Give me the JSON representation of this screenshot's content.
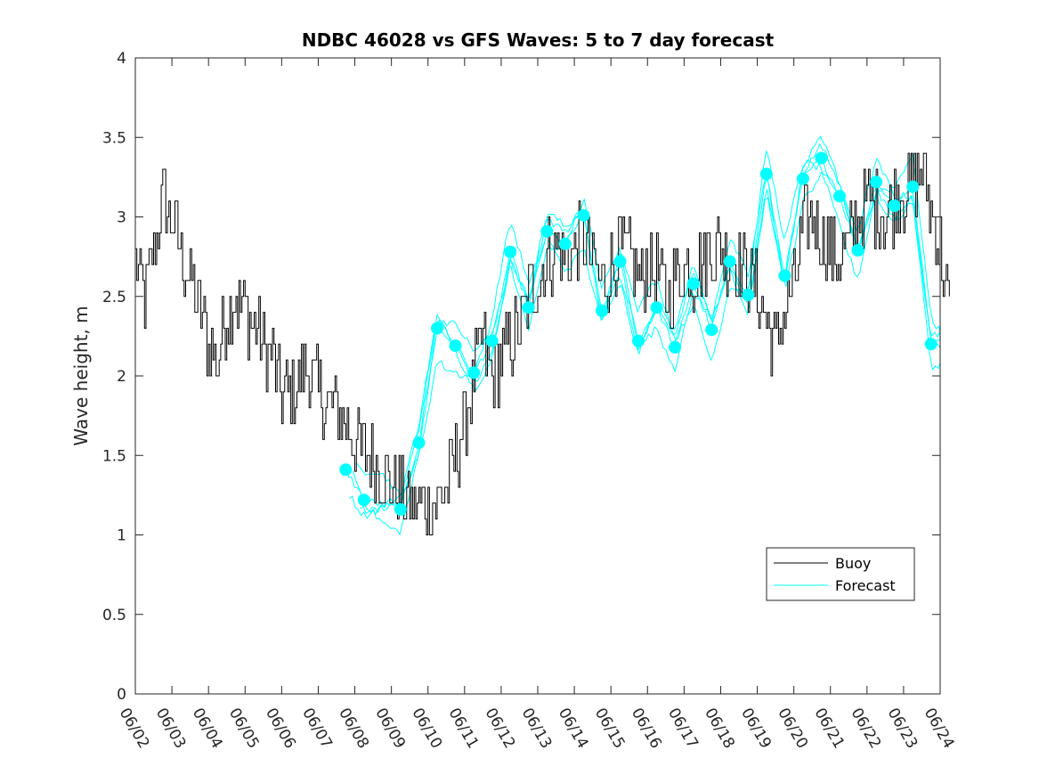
{
  "chart_data": {
    "type": "line",
    "title": "NDBC 46028 vs GFS Waves: 5 to 7 day forecast",
    "xlabel": "",
    "ylabel": "Wave height, m",
    "xlim": [
      0,
      22
    ],
    "ylim": [
      0,
      4
    ],
    "grid": false,
    "legend_placement": "bottom-right",
    "x_ticks": [
      "06/02",
      "06/03",
      "06/04",
      "06/05",
      "06/06",
      "06/07",
      "06/08",
      "06/09",
      "06/10",
      "06/11",
      "06/12",
      "06/13",
      "06/14",
      "06/15",
      "06/16",
      "06/17",
      "06/18",
      "06/19",
      "06/20",
      "06/21",
      "06/22",
      "06/23",
      "06/24"
    ],
    "y_ticks": [
      "0",
      "0.5",
      "1",
      "1.5",
      "2",
      "2.5",
      "3",
      "3.5",
      "4"
    ],
    "colors": {
      "buoy": "#000000",
      "forecast": "#00FFFF",
      "axes": "#262626"
    },
    "series": [
      {
        "name": "Buoy",
        "x_unit": "days since 06/02",
        "points": [
          [
            0.0,
            2.7
          ],
          [
            0.25,
            2.5
          ],
          [
            0.5,
            2.8
          ],
          [
            0.75,
            3.1
          ],
          [
            1.0,
            3.0
          ],
          [
            1.2,
            2.8
          ],
          [
            1.5,
            2.6
          ],
          [
            1.75,
            2.4
          ],
          [
            2.0,
            2.2
          ],
          [
            2.25,
            2.1
          ],
          [
            2.5,
            2.4
          ],
          [
            2.75,
            2.5
          ],
          [
            3.0,
            2.4
          ],
          [
            3.25,
            2.3
          ],
          [
            3.5,
            2.2
          ],
          [
            3.75,
            2.1
          ],
          [
            4.0,
            1.9
          ],
          [
            4.25,
            1.9
          ],
          [
            4.5,
            2.0
          ],
          [
            4.75,
            2.0
          ],
          [
            5.0,
            1.9
          ],
          [
            5.25,
            1.8
          ],
          [
            5.5,
            1.8
          ],
          [
            5.75,
            1.7
          ],
          [
            6.0,
            1.6
          ],
          [
            6.25,
            1.5
          ],
          [
            6.5,
            1.45
          ],
          [
            6.75,
            1.4
          ],
          [
            7.0,
            1.3
          ],
          [
            7.25,
            1.25
          ],
          [
            7.5,
            1.2
          ],
          [
            7.75,
            1.15
          ],
          [
            8.0,
            1.2
          ],
          [
            8.25,
            1.2
          ],
          [
            8.5,
            1.3
          ],
          [
            8.75,
            1.5
          ],
          [
            9.0,
            1.7
          ],
          [
            9.25,
            2.0
          ],
          [
            9.5,
            2.2
          ],
          [
            9.75,
            2.0
          ],
          [
            10.0,
            2.1
          ],
          [
            10.25,
            2.2
          ],
          [
            10.5,
            2.3
          ],
          [
            10.75,
            2.5
          ],
          [
            11.0,
            2.6
          ],
          [
            11.25,
            2.75
          ],
          [
            11.5,
            2.8
          ],
          [
            11.75,
            2.7
          ],
          [
            12.0,
            2.8
          ],
          [
            12.25,
            2.85
          ],
          [
            12.5,
            2.7
          ],
          [
            12.75,
            2.6
          ],
          [
            13.0,
            2.7
          ],
          [
            13.25,
            2.8
          ],
          [
            13.5,
            2.75
          ],
          [
            13.75,
            2.6
          ],
          [
            14.0,
            2.7
          ],
          [
            14.25,
            2.65
          ],
          [
            14.5,
            2.5
          ],
          [
            14.75,
            2.6
          ],
          [
            15.0,
            2.7
          ],
          [
            15.25,
            2.65
          ],
          [
            15.5,
            2.7
          ],
          [
            15.75,
            2.8
          ],
          [
            16.0,
            2.8
          ],
          [
            16.25,
            2.75
          ],
          [
            16.5,
            2.7
          ],
          [
            16.75,
            2.65
          ],
          [
            17.0,
            2.5
          ],
          [
            17.25,
            2.35
          ],
          [
            17.5,
            2.2
          ],
          [
            17.75,
            2.4
          ],
          [
            18.0,
            2.6
          ],
          [
            18.25,
            2.9
          ],
          [
            18.5,
            3.05
          ],
          [
            18.75,
            2.9
          ],
          [
            19.0,
            2.8
          ],
          [
            19.25,
            2.7
          ],
          [
            19.5,
            2.85
          ],
          [
            19.75,
            3.0
          ],
          [
            20.0,
            3.1
          ],
          [
            20.25,
            3.05
          ],
          [
            20.5,
            3.0
          ],
          [
            20.75,
            3.1
          ],
          [
            21.0,
            3.15
          ],
          [
            21.25,
            3.2
          ],
          [
            21.5,
            3.3
          ],
          [
            21.75,
            3.0
          ],
          [
            22.0,
            2.8
          ],
          [
            22.25,
            2.4
          ]
        ]
      },
      {
        "name": "Forecast",
        "x_unit": "days since 06/02",
        "markers": [
          [
            5.75,
            1.41
          ],
          [
            6.25,
            1.22
          ],
          [
            7.25,
            1.16
          ],
          [
            7.75,
            1.58
          ],
          [
            8.25,
            2.3
          ],
          [
            8.75,
            2.19
          ],
          [
            9.25,
            2.02
          ],
          [
            9.75,
            2.22
          ],
          [
            10.25,
            2.78
          ],
          [
            10.75,
            2.43
          ],
          [
            11.25,
            2.91
          ],
          [
            11.75,
            2.83
          ],
          [
            12.25,
            3.01
          ],
          [
            12.75,
            2.41
          ],
          [
            13.25,
            2.72
          ],
          [
            13.75,
            2.22
          ],
          [
            14.25,
            2.43
          ],
          [
            14.75,
            2.18
          ],
          [
            15.25,
            2.58
          ],
          [
            15.75,
            2.29
          ],
          [
            16.25,
            2.72
          ],
          [
            16.75,
            2.51
          ],
          [
            17.25,
            3.27
          ],
          [
            17.75,
            2.63
          ],
          [
            18.25,
            3.24
          ],
          [
            18.75,
            3.37
          ],
          [
            19.25,
            3.13
          ],
          [
            19.75,
            2.79
          ],
          [
            20.25,
            3.22
          ],
          [
            20.75,
            3.07
          ],
          [
            21.25,
            3.19
          ],
          [
            21.75,
            2.2
          ]
        ]
      }
    ]
  },
  "legend": {
    "buoy_label": "Buoy",
    "forecast_label": "Forecast"
  }
}
